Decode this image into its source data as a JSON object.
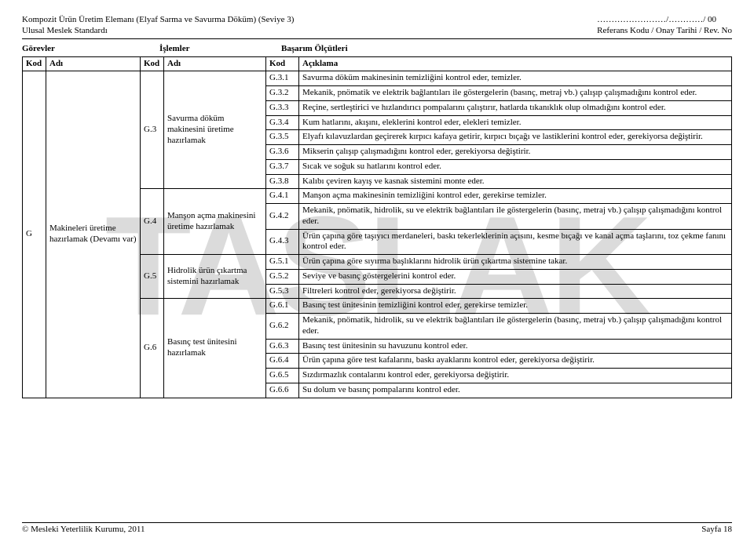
{
  "header": {
    "left_line1": "Kompozit Ürün Üretim Elemanı (Elyaf Sarma ve Savurma Döküm)   (Seviye 3)",
    "left_line2": "Ulusal Meslek Standardı",
    "right_line1": "……………………/…………/ 00",
    "right_line2": "Referans Kodu / Onay Tarihi / Rev. No"
  },
  "section_heads": {
    "gorevler": "Görevler",
    "islemler": "İşlemler",
    "basarim": "Başarım Ölçütleri"
  },
  "table": {
    "headers": {
      "kod1": "Kod",
      "adi1": "Adı",
      "kod2": "Kod",
      "adi2": "Adı",
      "kod3": "Kod",
      "aciklama": "Açıklama"
    },
    "task": {
      "kod": "G",
      "adi": "Makineleri üretime hazırlamak (Devamı var)"
    },
    "ops": {
      "g3": {
        "kod": "G.3",
        "adi": "Savurma döküm makinesini üretime hazırlamak"
      },
      "g4": {
        "kod": "G.4",
        "adi": "Manşon açma makinesini üretime hazırlamak"
      },
      "g5": {
        "kod": "G.5",
        "adi": "Hidrolik ürün çıkartma sistemini hazırlamak"
      },
      "g6": {
        "kod": "G.6",
        "adi": "Basınç test ünitesini hazırlamak"
      }
    },
    "rows": {
      "g31": {
        "kod": "G.3.1",
        "txt": "Savurma döküm makinesinin temizliğini kontrol eder, temizler."
      },
      "g32": {
        "kod": "G.3.2",
        "txt": "Mekanik, pnömatik ve elektrik bağlantıları ile göstergelerin (basınç, metraj vb.) çalışıp çalışmadığını kontrol eder."
      },
      "g33": {
        "kod": "G.3.3",
        "txt": "Reçine, sertleştirici ve hızlandırıcı pompalarını çalıştırır, hatlarda tıkanıklık olup olmadığını kontrol eder."
      },
      "g34": {
        "kod": "G.3.4",
        "txt": "Kum hatlarını, akışını, eleklerini kontrol eder, elekleri temizler."
      },
      "g35": {
        "kod": "G.3.5",
        "txt": "Elyafı kılavuzlardan geçirerek kırpıcı kafaya getirir, kırpıcı bıçağı ve lastiklerini kontrol eder, gerekiyorsa değiştirir."
      },
      "g36": {
        "kod": "G.3.6",
        "txt": "Mikserin çalışıp çalışmadığını kontrol eder, gerekiyorsa değiştirir."
      },
      "g37": {
        "kod": "G.3.7",
        "txt": "Sıcak ve soğuk su hatlarını kontrol eder."
      },
      "g38": {
        "kod": "G.3.8",
        "txt": "Kalıbı çeviren kayış ve kasnak sistemini monte eder."
      },
      "g41": {
        "kod": "G.4.1",
        "txt": "Manşon açma makinesinin temizliğini kontrol eder, gerekirse temizler."
      },
      "g42": {
        "kod": "G.4.2",
        "txt": "Mekanik, pnömatik, hidrolik, su ve elektrik bağlantıları ile göstergelerin (basınç, metraj vb.) çalışıp çalışmadığını kontrol eder."
      },
      "g43": {
        "kod": "G.4.3",
        "txt": "Ürün çapına göre taşıyıcı merdaneleri, baskı tekerleklerinin açısını, kesme bıçağı ve kanal açma taşlarını, toz çekme fanını kontrol eder."
      },
      "g51": {
        "kod": "G.5.1",
        "txt": "Ürün çapına göre sıyırma başlıklarını hidrolik ürün çıkartma sistemine takar."
      },
      "g52": {
        "kod": "G.5.2",
        "txt": "Seviye ve basınç göstergelerini kontrol eder."
      },
      "g53": {
        "kod": "G.5.3",
        "txt": "Filtreleri kontrol eder, gerekiyorsa değiştirir."
      },
      "g61": {
        "kod": "G.6.1",
        "txt": "Basınç test ünitesinin temizliğini kontrol eder, gerekirse temizler."
      },
      "g62": {
        "kod": "G.6.2",
        "txt": "Mekanik, pnömatik, hidrolik, su ve elektrik bağlantıları ile göstergelerin (basınç, metraj vb.) çalışıp çalışmadığını kontrol eder."
      },
      "g63": {
        "kod": "G.6.3",
        "txt": "Basınç test ünitesinin su havuzunu kontrol eder."
      },
      "g64": {
        "kod": "G.6.4",
        "txt": "Ürün çapına göre test kafalarını, baskı ayaklarını kontrol eder, gerekiyorsa değiştirir."
      },
      "g65": {
        "kod": "G.6.5",
        "txt": "Sızdırmazlık contalarını kontrol eder, gerekiyorsa değiştirir."
      },
      "g66": {
        "kod": "G.6.6",
        "txt": "Su dolum ve basınç pompalarını kontrol eder."
      }
    }
  },
  "watermark": "TASLAK",
  "footer": {
    "left": "© Mesleki Yeterlilik Kurumu, 2011",
    "right": "Sayfa 18"
  }
}
